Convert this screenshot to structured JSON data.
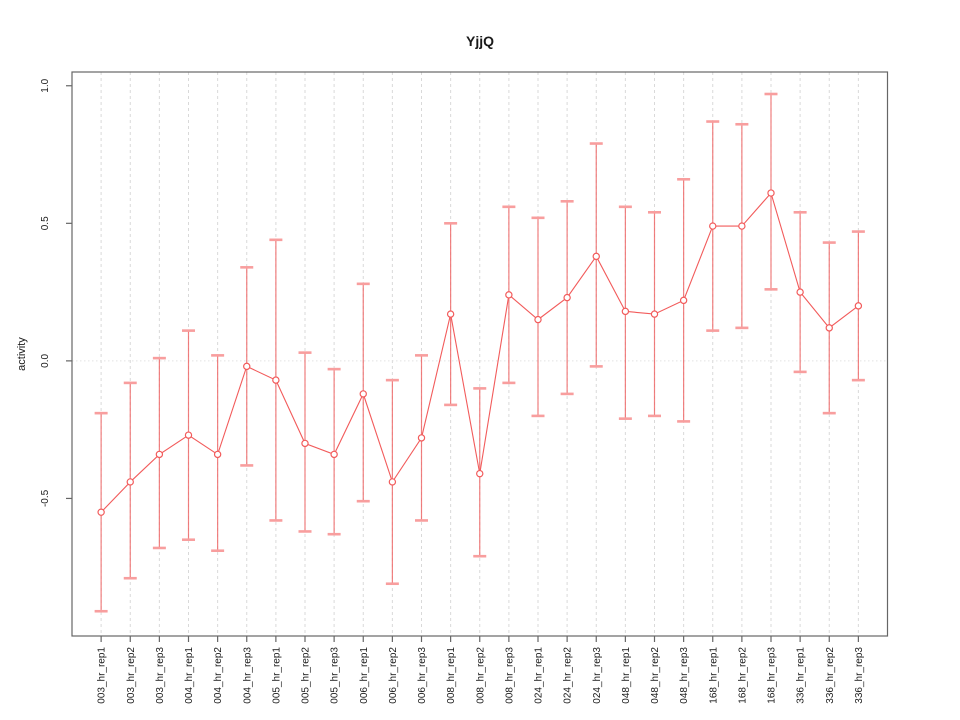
{
  "figure": {
    "background": "#ffffff"
  },
  "chart_data": {
    "type": "line",
    "error_bars": true,
    "title": "YjjQ",
    "xlabel": "",
    "ylabel": "activity",
    "legend": "none",
    "grid": {
      "vertical": "dashed light-gray line at every category tick",
      "horizontal": "dotted light-gray line at y=0 only"
    },
    "xlim": [
      0,
      28
    ],
    "ylim": [
      -1.0,
      1.05
    ],
    "yticks": [
      1.0,
      0.5,
      0.0,
      -0.5
    ],
    "ytick_labels": [
      "1.0",
      "0.5",
      "0.0",
      "-0.5"
    ],
    "categories": [
      "003_hr_rep1",
      "003_hr_rep2",
      "003_hr_rep3",
      "004_hr_rep1",
      "004_hr_rep2",
      "004_hr_rep3",
      "005_hr_rep1",
      "005_hr_rep2",
      "005_hr_rep3",
      "006_hr_rep1",
      "006_hr_rep2",
      "006_hr_rep3",
      "008_hr_rep1",
      "008_hr_rep2",
      "008_hr_rep3",
      "024_hr_rep1",
      "024_hr_rep2",
      "024_hr_rep3",
      "048_hr_rep1",
      "048_hr_rep2",
      "048_hr_rep3",
      "168_hr_rep1",
      "168_hr_rep2",
      "168_hr_rep3",
      "336_hr_rep1",
      "336_hr_rep2",
      "336_hr_rep3"
    ],
    "series": [
      {
        "name": "activity",
        "marker": "open-circle",
        "values": [
          -0.55,
          -0.44,
          -0.34,
          -0.27,
          -0.34,
          -0.02,
          -0.07,
          -0.3,
          -0.34,
          -0.12,
          -0.44,
          -0.28,
          0.17,
          -0.41,
          0.24,
          0.15,
          0.23,
          0.38,
          0.18,
          0.17,
          0.22,
          0.49,
          0.49,
          0.61,
          0.25,
          0.12,
          0.2
        ],
        "error_upper": [
          -0.19,
          -0.08,
          0.01,
          0.11,
          0.02,
          0.34,
          0.44,
          0.03,
          -0.03,
          0.28,
          -0.07,
          0.02,
          0.5,
          -0.1,
          0.56,
          0.52,
          0.58,
          0.79,
          0.56,
          0.54,
          0.66,
          0.87,
          0.86,
          0.97,
          0.54,
          0.43,
          0.47
        ],
        "error_lower": [
          -0.91,
          -0.79,
          -0.68,
          -0.65,
          -0.69,
          -0.38,
          -0.58,
          -0.62,
          -0.63,
          -0.51,
          -0.81,
          -0.58,
          -0.16,
          -0.71,
          -0.08,
          -0.2,
          -0.12,
          -0.02,
          -0.21,
          -0.2,
          -0.22,
          0.11,
          0.12,
          0.26,
          -0.04,
          -0.19,
          -0.07
        ]
      }
    ],
    "colors": {
      "line": "#f25b5b",
      "errorbar_line": "#ef6a6a",
      "errorbar_cap": "#f89e9e",
      "marker_fill": "#ffffff",
      "grid": "#d9d9d9",
      "zero_line": "#e2e2e2",
      "axis": "#666666",
      "text": "#1a1a1a"
    }
  }
}
